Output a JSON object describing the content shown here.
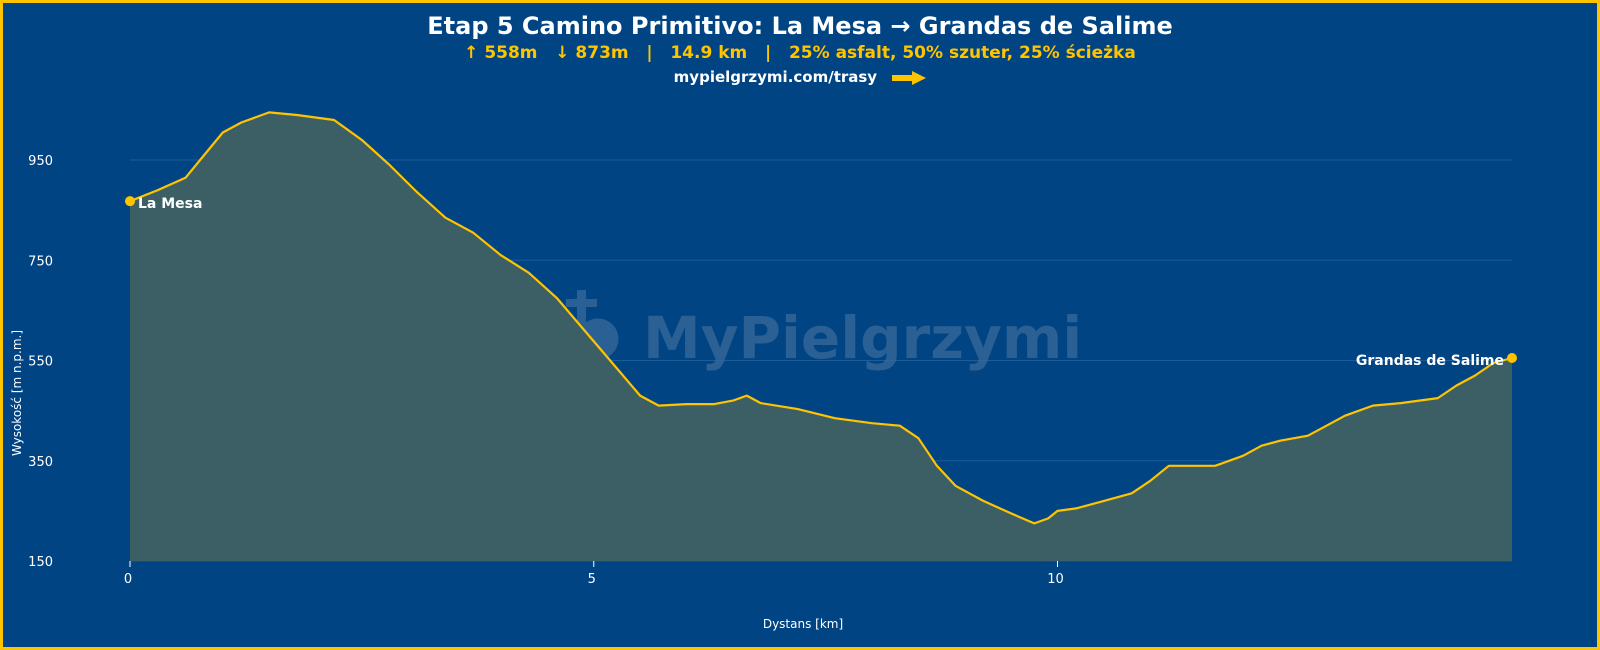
{
  "header": {
    "title": "Etap 5 Camino Primitivo: La Mesa → Grandas de Salime",
    "subtitle": "↑ 558m   ↓ 873m   |   14.9 km   |   25% asfalt, 50% szuter, 25% ścieżka",
    "link": "mypielgrzymi.com/trasy",
    "link_icon": "arrow-right-icon"
  },
  "watermark": {
    "text": "MyPielgrzymi",
    "icon": "cross-heart-logo-icon"
  },
  "colors": {
    "background": "#004483",
    "border": "#ffc400",
    "line": "#ffc400",
    "area_fill": "#3c5f66",
    "grid": "#1a5d99",
    "text": "#ffffff",
    "accent": "#ffc400"
  },
  "chart_data": {
    "type": "area",
    "xlabel": "Dystans [km]",
    "ylabel": "Wysokość [m n.p.m.]",
    "xlim": [
      0,
      14.9
    ],
    "ylim": [
      150,
      1000
    ],
    "x_ticks": [
      0,
      5,
      10
    ],
    "y_ticks": [
      150,
      350,
      550,
      750,
      950
    ],
    "grid": true,
    "series": [
      {
        "x": [
          0,
          0.3,
          0.6,
          0.8,
          1.0,
          1.2,
          1.5,
          1.8,
          2.2,
          2.5,
          2.8,
          3.1,
          3.4,
          3.7,
          4.0,
          4.3,
          4.6,
          4.9,
          5.2,
          5.5,
          5.7,
          6.0,
          6.3,
          6.5,
          6.65,
          6.8,
          7.2,
          7.6,
          8.0,
          8.3,
          8.5,
          8.7,
          8.9,
          9.2,
          9.5,
          9.75,
          9.9,
          10.0,
          10.2,
          10.5,
          10.8,
          11.0,
          11.2,
          11.5,
          11.7,
          12.0,
          12.2,
          12.4,
          12.7,
          12.9,
          13.1,
          13.4,
          13.7,
          13.9,
          14.1,
          14.3,
          14.5,
          14.7,
          14.9
        ],
        "y": [
          868,
          890,
          915,
          960,
          1005,
          1025,
          1045,
          1040,
          1030,
          990,
          940,
          885,
          835,
          805,
          760,
          725,
          675,
          610,
          545,
          480,
          460,
          463,
          463,
          470,
          480,
          465,
          453,
          435,
          425,
          420,
          395,
          340,
          300,
          270,
          245,
          225,
          235,
          250,
          255,
          270,
          285,
          310,
          340,
          340,
          340,
          360,
          380,
          390,
          400,
          420,
          440,
          460,
          465,
          470,
          475,
          500,
          520,
          545,
          555
        ]
      }
    ],
    "annotations": [
      {
        "label": "La Mesa",
        "x": 0,
        "y": 868
      },
      {
        "label": "Grandas de Salime",
        "x": 14.9,
        "y": 555
      }
    ]
  }
}
